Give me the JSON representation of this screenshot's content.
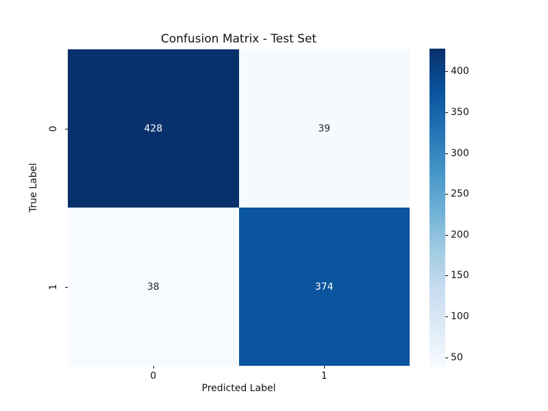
{
  "title": "Confusion Matrix - Test Set",
  "chart_data": {
    "type": "heatmap",
    "title": "Confusion Matrix - Test Set",
    "xlabel": "Predicted Label",
    "ylabel": "True Label",
    "x_tick_labels": [
      "0",
      "1"
    ],
    "y_tick_labels": [
      "0",
      "1"
    ],
    "matrix": [
      [
        428,
        39
      ],
      [
        38,
        374
      ]
    ],
    "annotations": [
      [
        "428",
        "39"
      ],
      [
        "38",
        "374"
      ]
    ],
    "colormap": "Blues",
    "vmin": 38,
    "vmax": 428,
    "colorbar_ticks": [
      50,
      100,
      150,
      200,
      250,
      300,
      350,
      400
    ],
    "colorbar_position": "right",
    "grid": false,
    "cell_colors": [
      [
        "#08306b",
        "#f6fafe"
      ],
      [
        "#f7fbff",
        "#0b559f"
      ]
    ],
    "cell_text_colors": [
      [
        "#ffffff",
        "#262626"
      ],
      [
        "#262626",
        "#ffffff"
      ]
    ],
    "colormap_stops": [
      "#f7fbff",
      "#deebf7",
      "#c6dbef",
      "#9ecae1",
      "#6baed6",
      "#4292c6",
      "#2171b5",
      "#08519c",
      "#08306b"
    ]
  }
}
